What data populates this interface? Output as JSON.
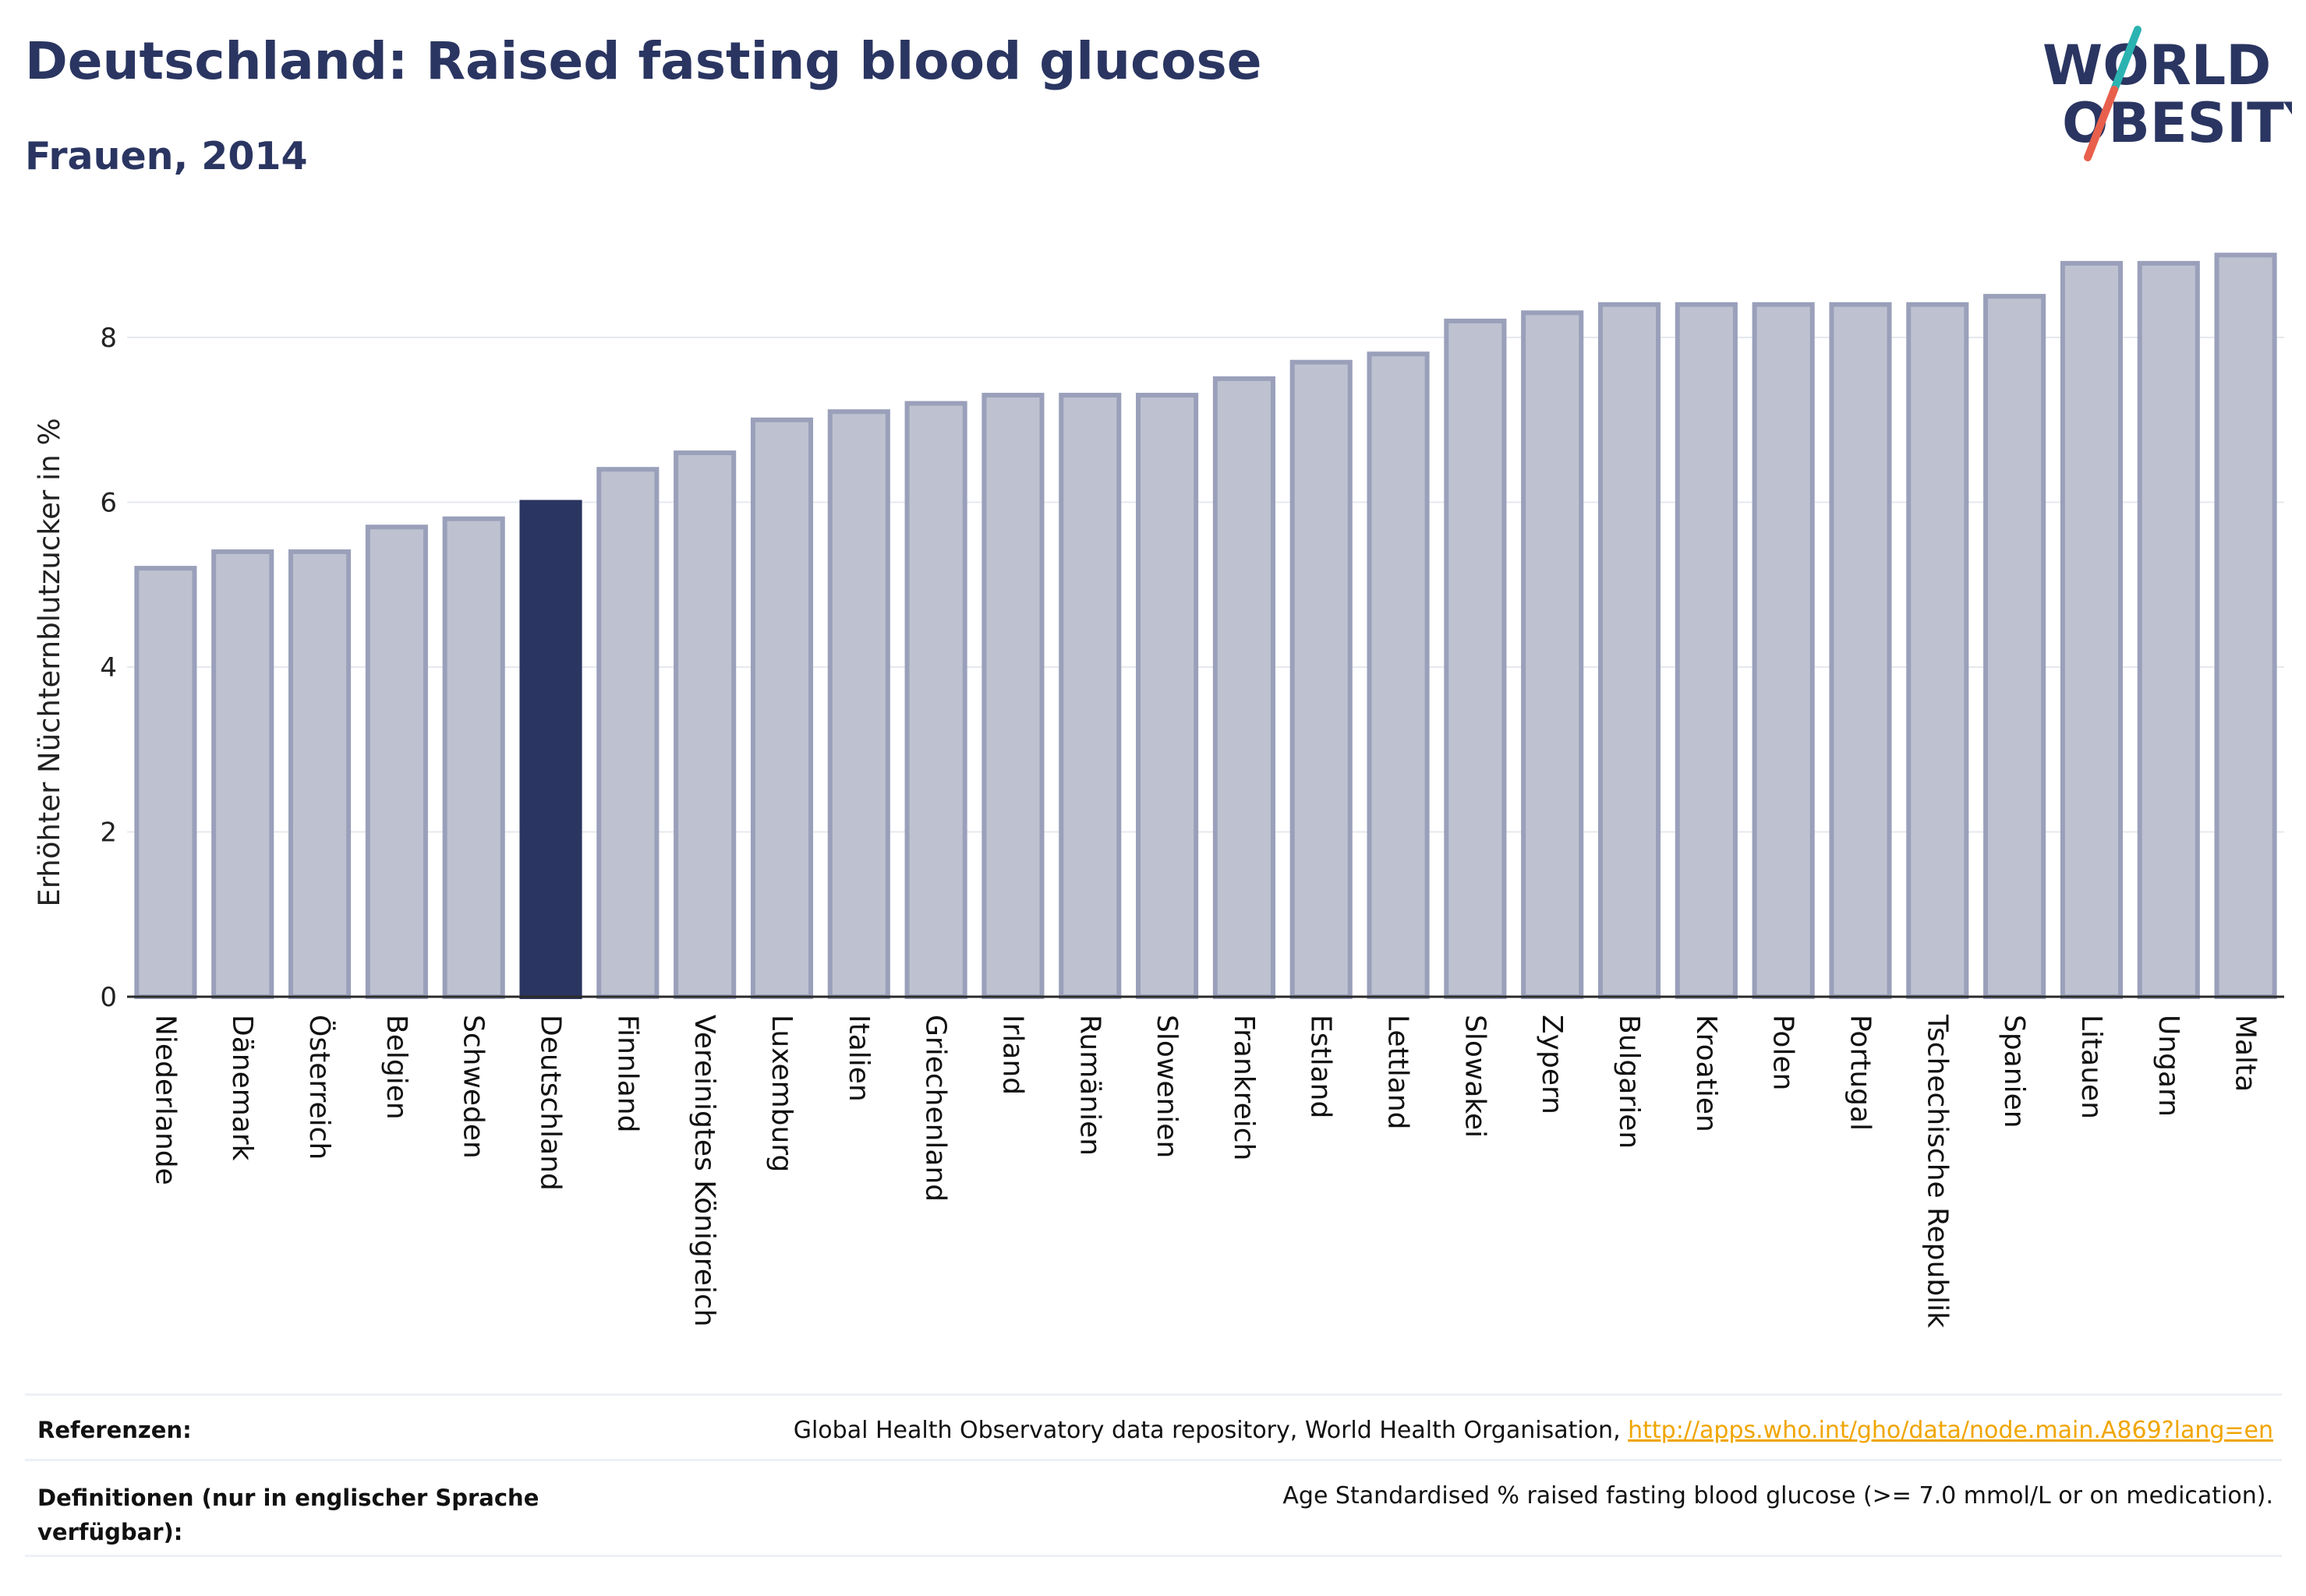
{
  "header": {
    "title": "Deutschland: Raised fasting blood glucose",
    "subtitle": "Frauen, 2014"
  },
  "logo": {
    "text_line1": "WORLD",
    "text_line2": "OBESITY",
    "color_text": "#2a3561",
    "color_slash_teal": "#2bb3b1",
    "color_slash_red": "#e8604c"
  },
  "chart_data": {
    "type": "bar",
    "title": "",
    "xlabel": "",
    "ylabel": "Erhöhter Nüchternblutzucker in %",
    "ylim": [
      0,
      9.05
    ],
    "yticks": [
      0,
      2,
      4,
      6,
      8
    ],
    "grid": true,
    "highlight_category": "Deutschland",
    "colors": {
      "bar_fill": "#bec2d0",
      "bar_stroke": "#9aa0ba",
      "highlight_fill": "#2a3561",
      "grid": "#e6e8ef",
      "axis": "#2b2b2b"
    },
    "categories": [
      "Niederlande",
      "Dänemark",
      "Österreich",
      "Belgien",
      "Schweden",
      "Deutschland",
      "Finnland",
      "Vereinigtes Königreich",
      "Luxemburg",
      "Italien",
      "Griechenland",
      "Irland",
      "Rumänien",
      "Slowenien",
      "Frankreich",
      "Estland",
      "Lettland",
      "Slowakei",
      "Zypern",
      "Bulgarien",
      "Kroatien",
      "Polen",
      "Portugal",
      "Tschechische Republik",
      "Spanien",
      "Litauen",
      "Ungarn",
      "Malta"
    ],
    "values": [
      5.2,
      5.4,
      5.4,
      5.7,
      5.8,
      6.0,
      6.4,
      6.6,
      7.0,
      7.1,
      7.2,
      7.3,
      7.3,
      7.3,
      7.5,
      7.7,
      7.8,
      8.2,
      8.3,
      8.4,
      8.4,
      8.4,
      8.4,
      8.4,
      8.5,
      8.9,
      8.9,
      9.0
    ]
  },
  "references": {
    "ref_label": "Referenzen:",
    "ref_text": "Global Health Observatory data repository, World Health Organisation, ",
    "ref_link": "http://apps.who.int/gho/data/node.main.A869?lang=en",
    "def_label": "Definitionen (nur in englischer Sprache verfügbar):",
    "def_text": "Age Standardised % raised fasting blood glucose (>= 7.0 mmol/L or on medication)."
  }
}
